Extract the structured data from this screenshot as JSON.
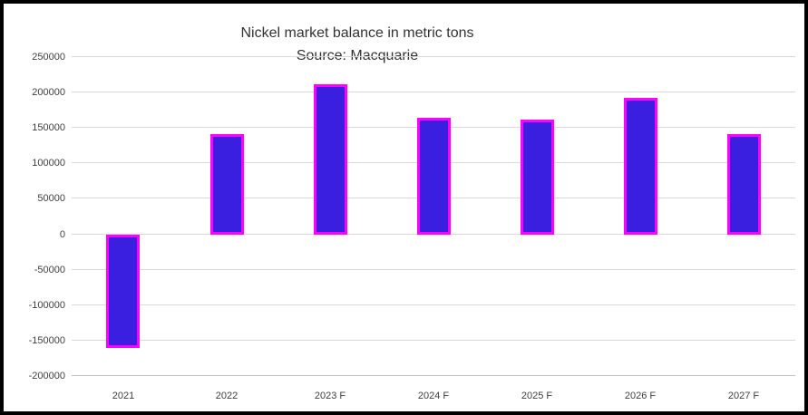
{
  "chart_data": {
    "type": "bar",
    "title": "Nickel market balance in metric tons",
    "subtitle": "Source: Macquarie",
    "categories": [
      "2021",
      "2022",
      "2023 F",
      "2024 F",
      "2025 F",
      "2026 F",
      "2027 F"
    ],
    "values": [
      -160000,
      141000,
      212000,
      165000,
      162000,
      193000,
      141000
    ],
    "xlabel": "",
    "ylabel": "",
    "ylim": [
      -200000,
      250000
    ],
    "ytick_step": 50000,
    "grid": true,
    "legend": false,
    "colors": {
      "bar_fill": "#3a1fe0",
      "bar_border": "#ff00ff",
      "grid_color": "#d9d9d9",
      "axis_color": "#bfbfbf",
      "text_color": "#404040",
      "title_color": "#333333",
      "background": "#ffffff",
      "frame_border": "#000000"
    }
  }
}
